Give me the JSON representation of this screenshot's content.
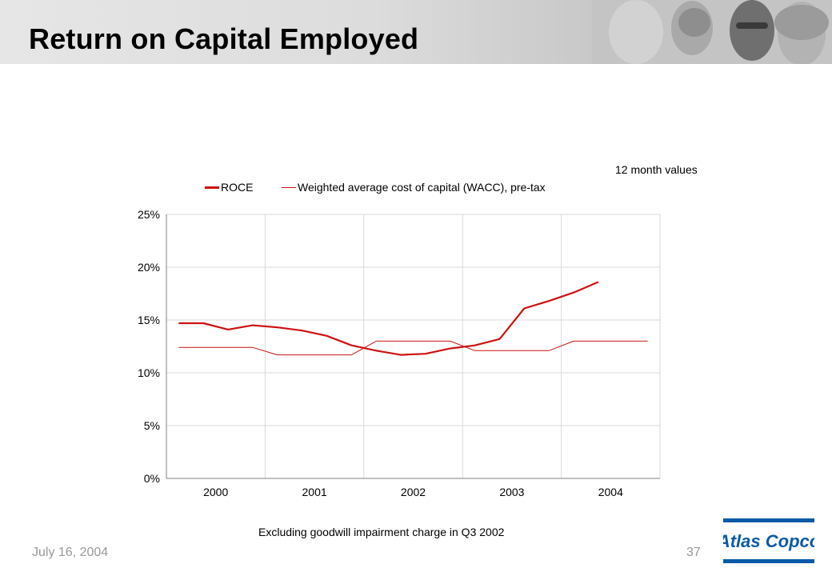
{
  "slide": {
    "title": "Return on Capital Employed",
    "note": "12 month values",
    "footnote": "Excluding goodwill impairment charge in Q3 2002",
    "date": "July 16, 2004",
    "page_number": "37",
    "logo_text": "Atlas Copco"
  },
  "colors": {
    "series": "#cc1111",
    "grid": "#d9d9d9",
    "axis": "#808080",
    "logo": "#0a5aa8"
  },
  "chart_data": {
    "type": "line",
    "categories": [
      "2000",
      "2001",
      "2002",
      "2003",
      "2004"
    ],
    "ylim": [
      0,
      25
    ],
    "yticks": [
      "0%",
      "5%",
      "10%",
      "15%",
      "20%",
      "25%"
    ],
    "yticks_values": [
      0,
      5,
      10,
      15,
      20,
      25
    ],
    "grid": true,
    "legend": "top",
    "series": [
      {
        "name": "ROCE",
        "x": [
          "2000 Q1",
          "2000 Q2",
          "2000 Q3",
          "2000 Q4",
          "2001 Q1",
          "2001 Q2",
          "2001 Q3",
          "2001 Q4",
          "2002 Q1",
          "2002 Q2",
          "2002 Q3",
          "2002 Q4",
          "2003 Q1",
          "2003 Q2",
          "2003 Q3",
          "2003 Q4",
          "2004 Q1",
          "2004 Q2"
        ],
        "values": [
          14.7,
          14.7,
          14.1,
          14.5,
          14.3,
          14.0,
          13.5,
          12.6,
          12.1,
          11.7,
          11.8,
          12.3,
          12.6,
          13.2,
          16.1,
          16.8,
          17.6,
          18.6
        ],
        "width": "thick"
      },
      {
        "name": "Weighted average cost of capital (WACC), pre-tax",
        "x": [
          "2000 Q1",
          "2000 Q2",
          "2000 Q3",
          "2000 Q4",
          "2001 Q1",
          "2001 Q2",
          "2001 Q3",
          "2001 Q4",
          "2002 Q1",
          "2002 Q2",
          "2002 Q3",
          "2002 Q4",
          "2003 Q1",
          "2003 Q2",
          "2003 Q3",
          "2003 Q4",
          "2004 Q1",
          "2004 Q2",
          "2004 Q3",
          "2004 Q4"
        ],
        "values": [
          12.4,
          12.4,
          12.4,
          12.4,
          11.7,
          11.7,
          11.7,
          11.7,
          13.0,
          13.0,
          13.0,
          13.0,
          12.1,
          12.1,
          12.1,
          12.1,
          13.0,
          13.0,
          13.0,
          13.0
        ],
        "width": "thin"
      }
    ]
  }
}
